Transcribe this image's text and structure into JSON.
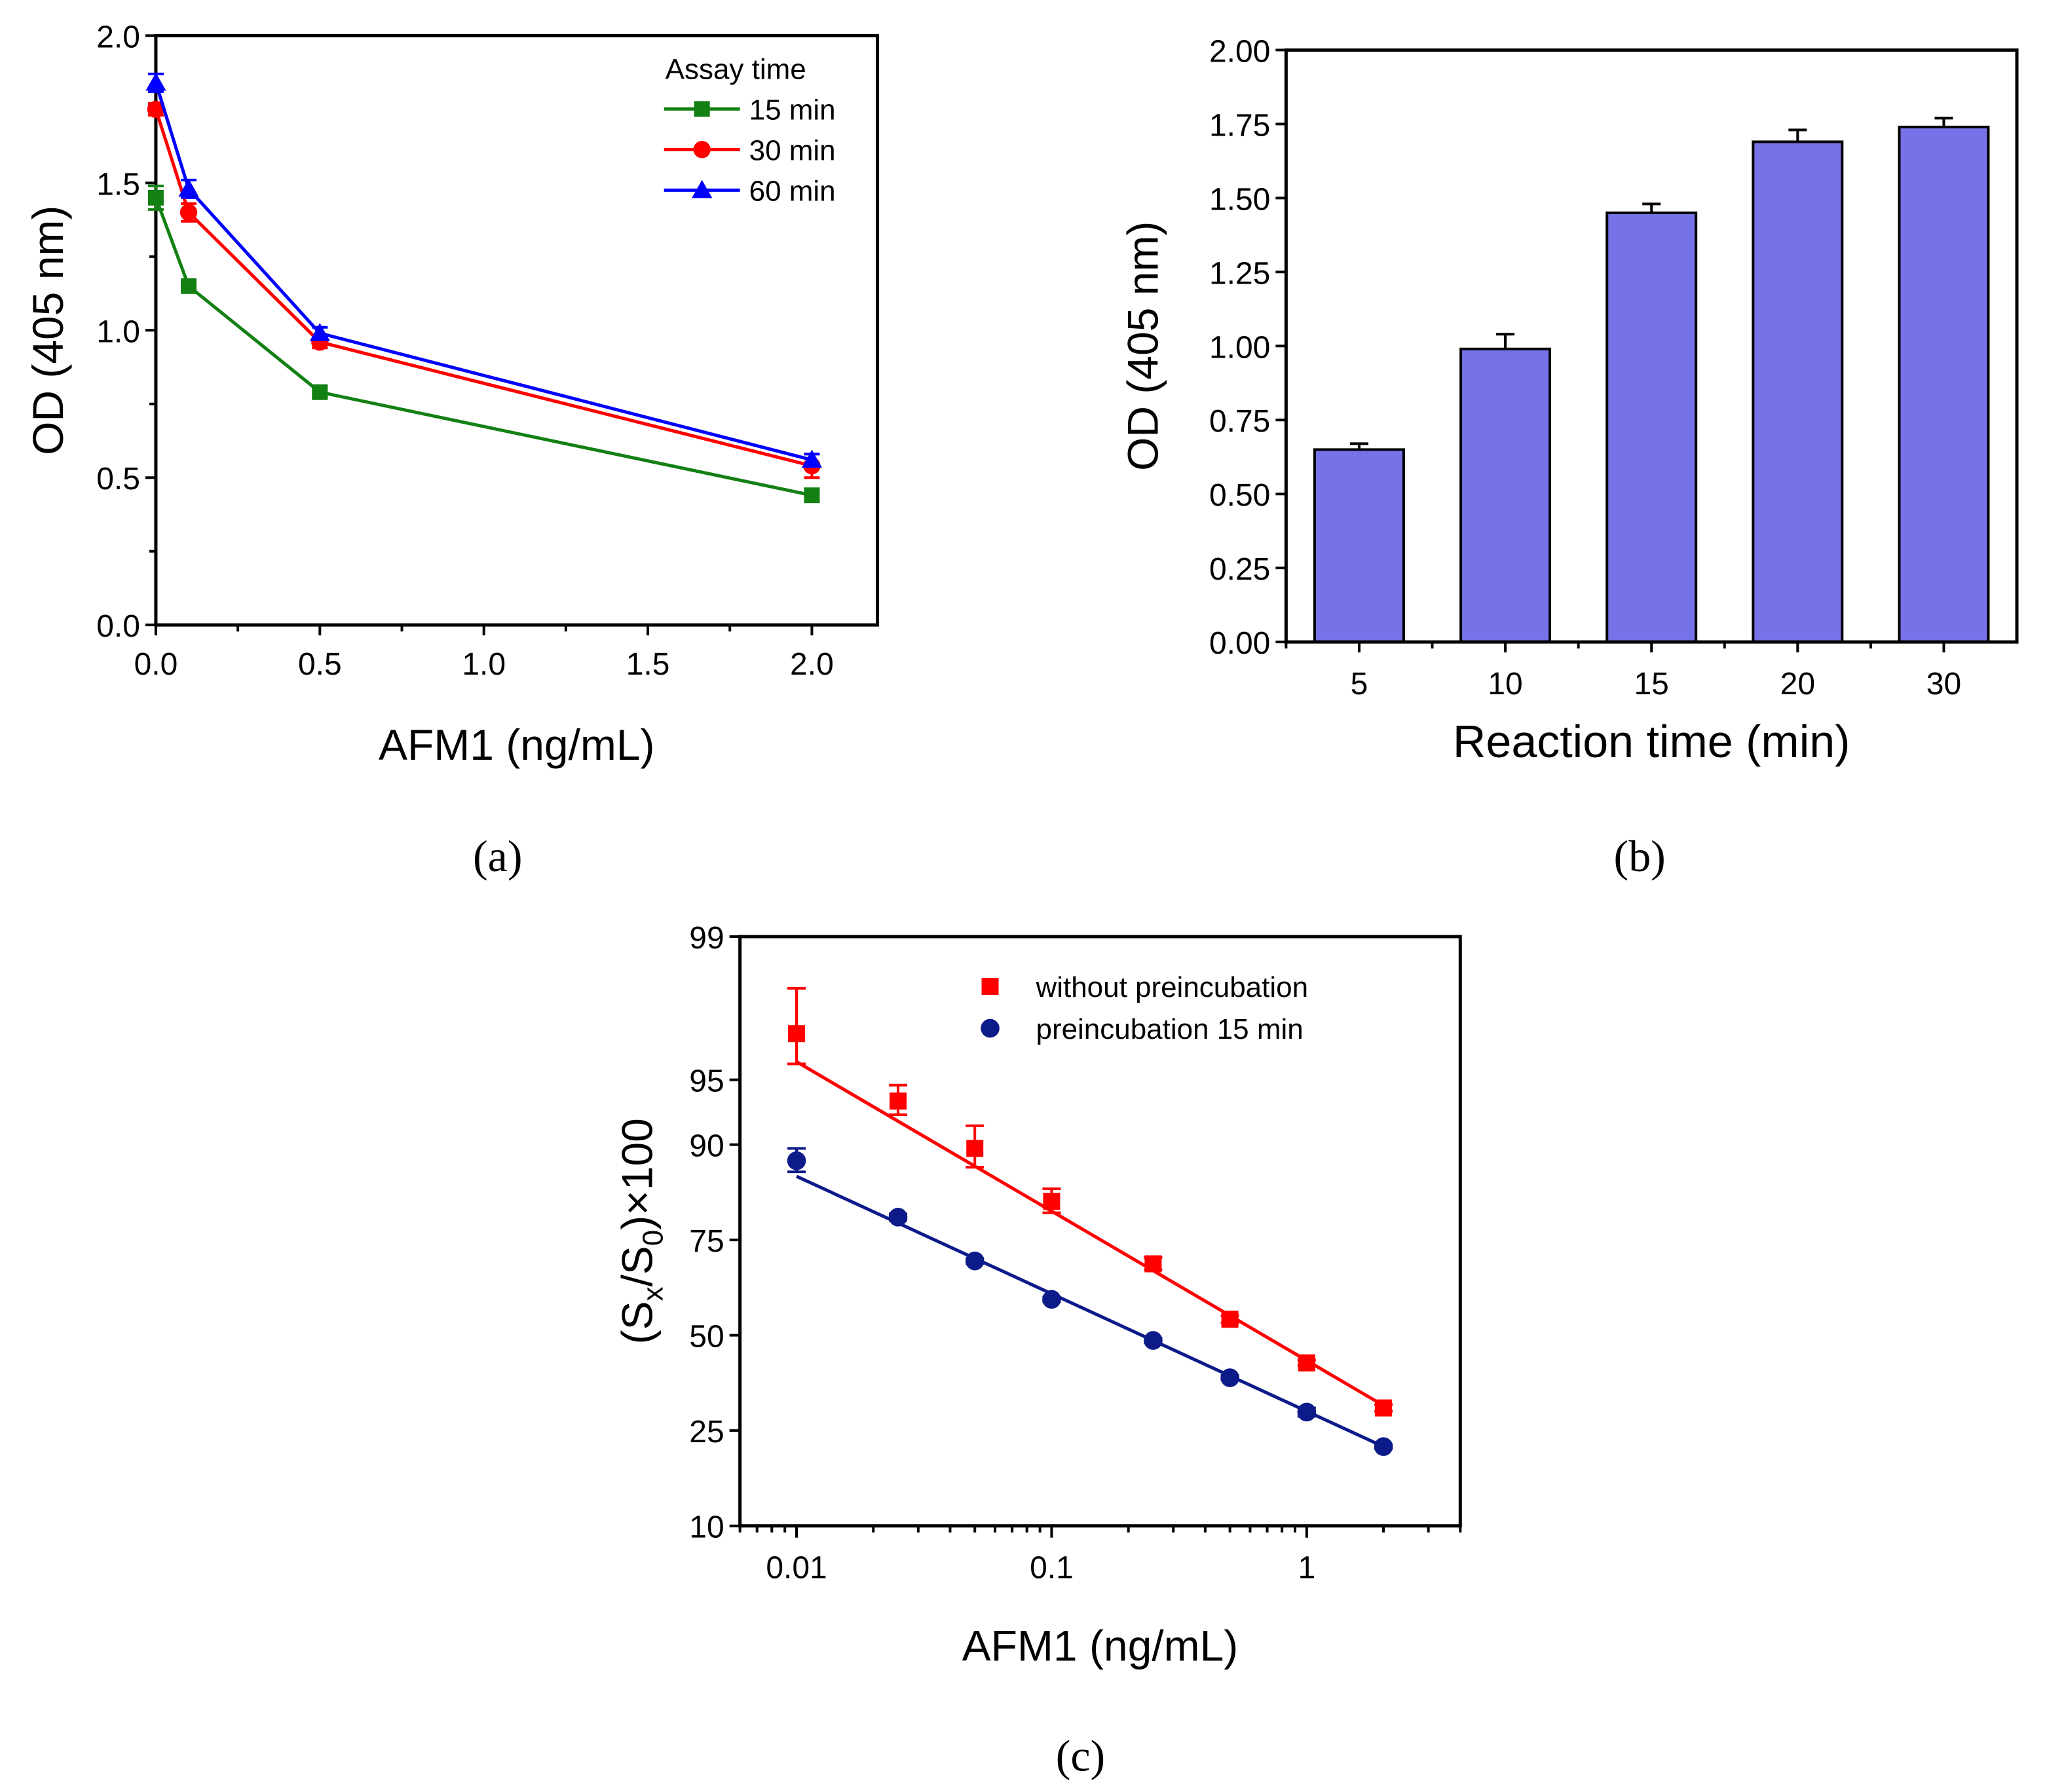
{
  "panel_labels": [
    "(a)",
    "(b)",
    "(c)"
  ],
  "chart_data": [
    {
      "type": "line",
      "panel": "(a)",
      "xlabel": "AFM1 (ng/mL)",
      "ylabel": "OD (405 nm)",
      "xlim": [
        0,
        2.2
      ],
      "ylim": [
        0,
        2.0
      ],
      "xticks": [
        0,
        0.5,
        1.0,
        1.5,
        2.0
      ],
      "xtick_labels": [
        "0.0",
        "0.5",
        "1.0",
        "1.5",
        "2.0"
      ],
      "yticks": [
        0,
        0.5,
        1.0,
        1.5,
        2.0
      ],
      "ytick_labels": [
        "0.0",
        "0.5",
        "1.0",
        "1.5",
        "2.0"
      ],
      "legend_title": "Assay time",
      "legend_position": "top-right",
      "x": [
        0,
        0.1,
        0.5,
        2.0
      ],
      "series": [
        {
          "name": "15 min",
          "color": "#138013",
          "marker": "square",
          "values": [
            1.45,
            1.15,
            0.79,
            0.44
          ],
          "errors": [
            0.04,
            0.02,
            0.02,
            0.02
          ]
        },
        {
          "name": "30 min",
          "color": "#ff0000",
          "marker": "circle",
          "values": [
            1.75,
            1.4,
            0.96,
            0.54
          ],
          "errors": [
            0.02,
            0.03,
            0.02,
            0.04
          ]
        },
        {
          "name": "60 min",
          "color": "#0000ff",
          "marker": "triangle",
          "values": [
            1.84,
            1.48,
            0.99,
            0.56
          ],
          "errors": [
            0.03,
            0.03,
            0.02,
            0.02
          ]
        }
      ]
    },
    {
      "type": "bar",
      "panel": "(b)",
      "xlabel": "Reaction time (min)",
      "ylabel": "OD (405 nm)",
      "categories": [
        "5",
        "10",
        "15",
        "20",
        "30"
      ],
      "values": [
        0.65,
        0.99,
        1.45,
        1.69,
        1.74
      ],
      "errors": [
        0.02,
        0.05,
        0.03,
        0.04,
        0.03
      ],
      "bar_color": "#7673e8",
      "ylim": [
        0,
        2.0
      ],
      "yticks": [
        0,
        0.25,
        0.5,
        0.75,
        1.0,
        1.25,
        1.5,
        1.75,
        2.0
      ],
      "ytick_labels": [
        "0.00",
        "0.25",
        "0.50",
        "0.75",
        "1.00",
        "1.25",
        "1.50",
        "1.75",
        "2.00"
      ]
    },
    {
      "type": "scatter",
      "panel": "(c)",
      "xlabel": "AFM1 (ng/mL)",
      "ylabel": "(Sx/S0)×100",
      "ylabel_parts": {
        "open": "(S",
        "sub1": "x",
        "mid": "/S",
        "sub2": "0",
        "close": ")×100"
      },
      "xscale": "log",
      "yscale": "logit",
      "xlim": [
        0.006,
        4
      ],
      "ylim": [
        10,
        99
      ],
      "xticks": [
        0.01,
        0.1,
        1
      ],
      "xtick_labels": [
        "0.01",
        "0.1",
        "1"
      ],
      "yticks": [
        10,
        25,
        50,
        75,
        90,
        95,
        99
      ],
      "ytick_labels": [
        "10",
        "25",
        "50",
        "75",
        "90",
        "95",
        "99"
      ],
      "legend_position": "top-right",
      "x": [
        0.01,
        0.025,
        0.05,
        0.1,
        0.25,
        0.5,
        1,
        2
      ],
      "series": [
        {
          "name": "without preincubation",
          "color": "#ff0000",
          "marker": "square",
          "values": [
            97.0,
            93.7,
            89.6,
            82.4,
            69.5,
            54.6,
            42.1,
            30.2
          ],
          "errors": [
            1.2,
            1.0,
            2.2,
            2.0,
            1.5,
            1.0,
            0.8,
            0.8
          ],
          "fit": [
            95.9,
            30.8
          ]
        },
        {
          "name": "preincubation 15 min",
          "color": "#0d1a8a",
          "marker": "circle",
          "values": [
            88.2,
            79.6,
            70.2,
            60.2,
            48.5,
            38.0,
            29.2,
            21.7
          ],
          "errors": [
            1.4,
            0.6,
            0.6,
            0.6,
            0.6,
            0.6,
            1.0,
            0.4
          ],
          "fit": [
            86.2,
            21.7
          ]
        }
      ]
    }
  ]
}
